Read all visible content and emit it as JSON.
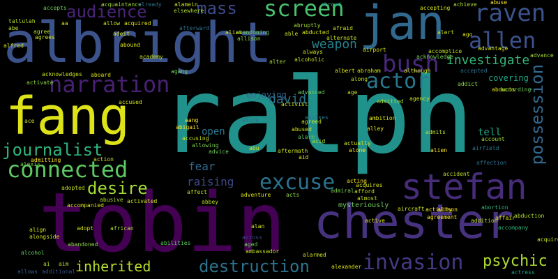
{
  "words": [
    {
      "text": "ralph",
      "size": 150,
      "color": "#21918c"
    },
    {
      "text": "tobin",
      "size": 118,
      "color": "#440154"
    },
    {
      "text": "albright",
      "size": 80,
      "color": "#3b528b"
    },
    {
      "text": "fang",
      "size": 74,
      "color": "#dde318"
    },
    {
      "text": "jan",
      "size": 68,
      "color": "#31688e"
    },
    {
      "text": "chester",
      "size": 68,
      "color": "#46327e"
    },
    {
      "text": "stefan",
      "size": 50,
      "color": "#472c7a"
    },
    {
      "text": "raven",
      "size": 34,
      "color": "#3b528b"
    },
    {
      "text": "allen",
      "size": 32,
      "color": "#3b528b"
    },
    {
      "text": "connected",
      "size": 32,
      "color": "#5ec962"
    },
    {
      "text": "bush",
      "size": 34,
      "color": "#482878"
    },
    {
      "text": "narration",
      "size": 32,
      "color": "#482173"
    },
    {
      "text": "screen",
      "size": 32,
      "color": "#4ac16d"
    },
    {
      "text": "actor",
      "size": 30,
      "color": "#2a788e"
    },
    {
      "text": "excuse",
      "size": 30,
      "color": "#2c728e"
    },
    {
      "text": "invasion",
      "size": 30,
      "color": "#443983"
    },
    {
      "text": "journalist",
      "size": 24,
      "color": "#2fb47c"
    },
    {
      "text": "desire",
      "size": 24,
      "color": "#a2da37"
    },
    {
      "text": "destruction",
      "size": 24,
      "color": "#2c728e"
    },
    {
      "text": "audience",
      "size": 24,
      "color": "#482576"
    },
    {
      "text": "mass",
      "size": 24,
      "color": "#3e4989"
    },
    {
      "text": "possession",
      "size": 24,
      "color": "#31688e"
    },
    {
      "text": "psychic",
      "size": 22,
      "color": "#addc30"
    },
    {
      "text": "inherited",
      "size": 20,
      "color": "#b5de2b"
    },
    {
      "text": "investigate",
      "size": 18,
      "color": "#35b779"
    },
    {
      "text": "weapon",
      "size": 18,
      "color": "#26828e"
    },
    {
      "text": "david",
      "size": 18,
      "color": "#2c728e"
    },
    {
      "text": "raising",
      "size": 16,
      "color": "#3e4989"
    },
    {
      "text": "fear",
      "size": 16,
      "color": "#31688e"
    },
    {
      "text": "open",
      "size": 14,
      "color": "#2a788e"
    },
    {
      "text": "tell",
      "size": 14,
      "color": "#22a884"
    },
    {
      "text": "covering",
      "size": 12,
      "color": "#20a486"
    },
    {
      "text": "enjoying",
      "size": 12,
      "color": "#31688e"
    },
    {
      "text": "mysteriously",
      "size": 10,
      "color": "#6ece58"
    },
    {
      "text": "accompany",
      "size": 8,
      "color": "#2fb47c"
    },
    {
      "text": "actress",
      "size": 8,
      "color": "#1fa088"
    },
    {
      "text": "alexander",
      "size": 8,
      "color": "#dde318"
    },
    {
      "text": "ambassador",
      "size": 8,
      "color": "#bddf26"
    },
    {
      "text": "allows",
      "size": 8,
      "color": "#355f8d"
    },
    {
      "text": "additional",
      "size": 8,
      "color": "#3b528b"
    },
    {
      "text": "alone",
      "size": 8,
      "color": "#fde725"
    },
    {
      "text": "alien",
      "size": 8,
      "color": "#fde725"
    },
    {
      "text": "admits",
      "size": 8,
      "color": "#b5de2b"
    },
    {
      "text": "agrees",
      "size": 8,
      "color": "#c8e020"
    },
    {
      "text": "alfred",
      "size": 8,
      "color": "#d2e21b"
    },
    {
      "text": "abe",
      "size": 8,
      "color": "#bddf26"
    },
    {
      "text": "tallulah",
      "size": 8,
      "color": "#b5de2b"
    },
    {
      "text": "agree",
      "size": 8,
      "color": "#b5de2b"
    },
    {
      "text": "accepts",
      "size": 8,
      "color": "#6ece58"
    },
    {
      "text": "acquaintance",
      "size": 8,
      "color": "#a2da37"
    },
    {
      "text": "already",
      "size": 8,
      "color": "#2c728e"
    },
    {
      "text": "alamein",
      "size": 8,
      "color": "#c8e020"
    },
    {
      "text": "elsewhere",
      "size": 8,
      "color": "#addc30"
    },
    {
      "text": "abandoning",
      "size": 8,
      "color": "#6ece58"
    },
    {
      "text": "accepting",
      "size": 8,
      "color": "#d2e21b"
    },
    {
      "text": "achieve",
      "size": 8,
      "color": "#addc30"
    },
    {
      "text": "abuse",
      "size": 8,
      "color": "#fde725"
    },
    {
      "text": "ago",
      "size": 8,
      "color": "#dde318"
    },
    {
      "text": "alert",
      "size": 8,
      "color": "#c8e020"
    },
    {
      "text": "advantage",
      "size": 8,
      "color": "#d2e21b"
    },
    {
      "text": "accomplice",
      "size": 8,
      "color": "#bddf26"
    },
    {
      "text": "advance",
      "size": 8,
      "color": "#a2da37"
    },
    {
      "text": "acknowledge",
      "size": 8,
      "color": "#7ad151"
    },
    {
      "text": "acknowledges",
      "size": 8,
      "color": "#c8e020"
    },
    {
      "text": "academy",
      "size": 8,
      "color": "#c8e020"
    },
    {
      "text": "aboard",
      "size": 8,
      "color": "#dde318"
    },
    {
      "text": "activate",
      "size": 8,
      "color": "#8fd744"
    },
    {
      "text": "accused",
      "size": 8,
      "color": "#d2e21b"
    },
    {
      "text": "aang",
      "size": 8,
      "color": "#fde725"
    },
    {
      "text": "abigail",
      "size": 8,
      "color": "#fde725"
    },
    {
      "text": "accusing",
      "size": 8,
      "color": "#c8e020"
    },
    {
      "text": "allowing",
      "size": 8,
      "color": "#7ad151"
    },
    {
      "text": "advice",
      "size": 8,
      "color": "#6ece58"
    },
    {
      "text": "action",
      "size": 8,
      "color": "#c8e020"
    },
    {
      "text": "adopted",
      "size": 8,
      "color": "#c8e020"
    },
    {
      "text": "affect",
      "size": 8,
      "color": "#bddf26"
    },
    {
      "text": "activated",
      "size": 8,
      "color": "#c8e020"
    },
    {
      "text": "abusive",
      "size": 8,
      "color": "#addc30"
    },
    {
      "text": "accompanied",
      "size": 8,
      "color": "#dde318"
    },
    {
      "text": "adopt",
      "size": 8,
      "color": "#d2e21b"
    },
    {
      "text": "african",
      "size": 8,
      "color": "#addc30"
    },
    {
      "text": "abandoned",
      "size": 8,
      "color": "#8fd744"
    },
    {
      "text": "align",
      "size": 8,
      "color": "#d2e21b"
    },
    {
      "text": "alongside",
      "size": 8,
      "color": "#d2e21b"
    },
    {
      "text": "alcohol",
      "size": 8,
      "color": "#5ec962"
    },
    {
      "text": "alan",
      "size": 8,
      "color": "#d2e21b"
    },
    {
      "text": "aged",
      "size": 8,
      "color": "#6ece58"
    },
    {
      "text": "across",
      "size": 8,
      "color": "#3e4989"
    },
    {
      "text": "abbey",
      "size": 8,
      "color": "#bddf26"
    },
    {
      "text": "adventure",
      "size": 8,
      "color": "#dde318"
    },
    {
      "text": "acts",
      "size": 8,
      "color": "#8fd744"
    },
    {
      "text": "acquires",
      "size": 8,
      "color": "#d2e21b"
    },
    {
      "text": "afford",
      "size": 8,
      "color": "#c8e020"
    },
    {
      "text": "almost",
      "size": 8,
      "color": "#c8e020"
    },
    {
      "text": "active",
      "size": 8,
      "color": "#dde318"
    },
    {
      "text": "aircraft",
      "size": 8,
      "color": "#d2e21b"
    },
    {
      "text": "activity",
      "size": 8,
      "color": "#fde725"
    },
    {
      "text": "agreement",
      "size": 8,
      "color": "#fde725"
    },
    {
      "text": "alison",
      "size": 8,
      "color": "#fde725"
    },
    {
      "text": "abortion",
      "size": 8,
      "color": "#2fb47c"
    },
    {
      "text": "addition",
      "size": 8,
      "color": "#bddf26"
    },
    {
      "text": "affair",
      "size": 8,
      "color": "#dde318"
    },
    {
      "text": "abduction",
      "size": 8,
      "color": "#b5de2b"
    },
    {
      "text": "acquire",
      "size": 8,
      "color": "#c8e020"
    },
    {
      "text": "affection",
      "size": 8,
      "color": "#2c728e"
    },
    {
      "text": "accident",
      "size": 8,
      "color": "#bddf26"
    },
    {
      "text": "account",
      "size": 8,
      "color": "#a2da37"
    },
    {
      "text": "airfield",
      "size": 8,
      "color": "#2a788e"
    },
    {
      "text": "abducts",
      "size": 8,
      "color": "#dde318"
    },
    {
      "text": "according",
      "size": 8,
      "color": "#6ece58"
    },
    {
      "text": "accepted",
      "size": 8,
      "color": "#2c728e"
    },
    {
      "text": "agency",
      "size": 8,
      "color": "#c8e020"
    },
    {
      "text": "ambition",
      "size": 8,
      "color": "#dde318"
    },
    {
      "text": "alley",
      "size": 8,
      "color": "#dde318"
    },
    {
      "text": "admitted",
      "size": 8,
      "color": "#a2da37"
    },
    {
      "text": "alarm",
      "size": 8,
      "color": "#5ec962"
    },
    {
      "text": "acid",
      "size": 8,
      "color": "#addc30"
    },
    {
      "text": "actually",
      "size": 8,
      "color": "#d2e21b"
    },
    {
      "text": "aftermath",
      "size": 8,
      "color": "#c8e020"
    },
    {
      "text": "aid",
      "size": 8,
      "color": "#dde318"
    },
    {
      "text": "abused",
      "size": 8,
      "color": "#d2e21b"
    },
    {
      "text": "agreed",
      "size": 8,
      "color": "#c8e020"
    },
    {
      "text": "advises",
      "size": 8,
      "color": "#2a788e"
    },
    {
      "text": "alice",
      "size": 8,
      "color": "#2c728e"
    },
    {
      "text": "activist",
      "size": 8,
      "color": "#c8e020"
    },
    {
      "text": "advanced",
      "size": 8,
      "color": "#6ece58"
    },
    {
      "text": "alcoholic",
      "size": 8,
      "color": "#c8e020"
    },
    {
      "text": "albert",
      "size": 8,
      "color": "#dde318"
    },
    {
      "text": "abraham",
      "size": 8,
      "color": "#d2e21b"
    },
    {
      "text": "along",
      "size": 8,
      "color": "#bddf26"
    },
    {
      "text": "age",
      "size": 8,
      "color": "#bddf26"
    },
    {
      "text": "always",
      "size": 8,
      "color": "#d2e21b"
    },
    {
      "text": "abducted",
      "size": 8,
      "color": "#d2e21b"
    },
    {
      "text": "alternate",
      "size": 8,
      "color": "#c8e020"
    },
    {
      "text": "afraid",
      "size": 8,
      "color": "#c8e020"
    },
    {
      "text": "abruptly",
      "size": 8,
      "color": "#a2da37"
    },
    {
      "text": "able",
      "size": 8,
      "color": "#c8e020"
    },
    {
      "text": "alias",
      "size": 8,
      "color": "#d2e21b"
    },
    {
      "text": "afterward",
      "size": 8,
      "color": "#2c728e"
    },
    {
      "text": "allow",
      "size": 8,
      "color": "#c8e020"
    },
    {
      "text": "acquired",
      "size": 8,
      "color": "#dde318"
    },
    {
      "text": "adeit",
      "size": 8,
      "color": "#d2e21b"
    },
    {
      "text": "allison",
      "size": 8,
      "color": "#8fd744"
    },
    {
      "text": "alter",
      "size": 8,
      "color": "#a2da37"
    },
    {
      "text": "agang",
      "size": 8,
      "color": "#6ece58"
    },
    {
      "text": "abound",
      "size": 8,
      "color": "#dde318"
    },
    {
      "text": "aa",
      "size": 8,
      "color": "#d2e21b"
    },
    {
      "text": "although",
      "size": 8,
      "color": "#c8e020"
    },
    {
      "text": "airport",
      "size": 8,
      "color": "#d2e21b"
    },
    {
      "text": "abu",
      "size": 8,
      "color": "#dde318"
    },
    {
      "text": "ace",
      "size": 8,
      "color": "#c8e020"
    },
    {
      "text": "ai",
      "size": 8,
      "color": "#addc30"
    },
    {
      "text": "alexis",
      "size": 8,
      "color": "#7ad151"
    },
    {
      "text": "admiral",
      "size": 8,
      "color": "#7ad151"
    },
    {
      "text": "admitting",
      "size": 8,
      "color": "#fde725"
    },
    {
      "text": "acting",
      "size": 8,
      "color": "#fde725"
    },
    {
      "text": "abilities",
      "size": 8,
      "color": "#5ec962"
    },
    {
      "text": "aim",
      "size": 8,
      "color": "#b5de2b"
    },
    {
      "text": "alarmed",
      "size": 8,
      "color": "#d2e21b"
    },
    {
      "text": "addict",
      "size": 8,
      "color": "#8fd744"
    },
    {
      "text": "abroad",
      "size": 8,
      "color": "#1fa088"
    }
  ]
}
